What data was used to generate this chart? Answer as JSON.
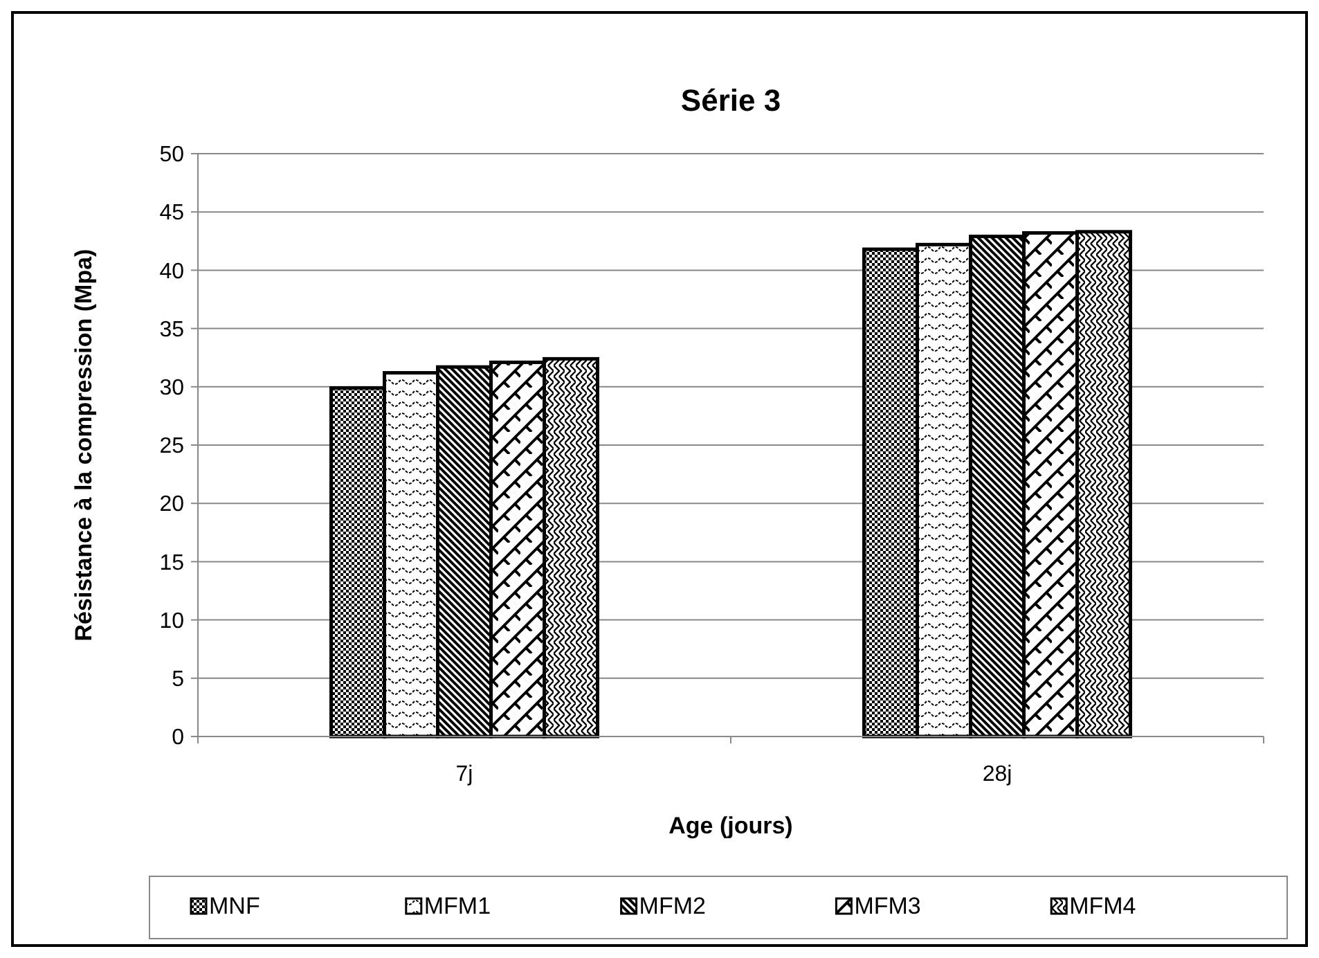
{
  "chart_data": {
    "type": "bar",
    "title": "Série 3",
    "xlabel": "Age (jours)",
    "ylabel": "Résistance à la compression (Mpa)",
    "categories": [
      "7j",
      "28j"
    ],
    "series": [
      {
        "name": "MNF",
        "color": "#000000",
        "values": [
          29.9,
          41.8
        ]
      },
      {
        "name": "MFM1",
        "color": "#000000",
        "values": [
          31.2,
          42.2
        ]
      },
      {
        "name": "MFM2",
        "color": "#000000",
        "values": [
          31.7,
          42.9
        ]
      },
      {
        "name": "MFM3",
        "color": "#000000",
        "values": [
          32.1,
          43.2
        ]
      },
      {
        "name": "MFM4",
        "color": "#000000",
        "values": [
          32.4,
          43.3
        ]
      }
    ],
    "ylim": [
      0,
      50
    ],
    "yticks": [
      0,
      5,
      10,
      15,
      20,
      25,
      30,
      35,
      40,
      45,
      50
    ],
    "grid": "y",
    "legend": "bottom"
  }
}
